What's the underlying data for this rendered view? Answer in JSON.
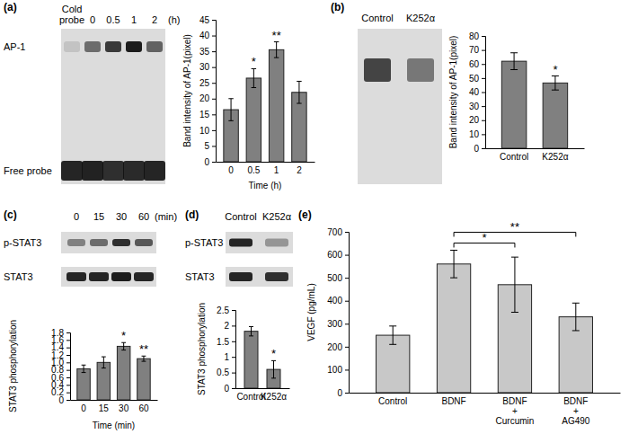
{
  "panel_labels": [
    "(a)",
    "(b)",
    "(c)",
    "(d)",
    "(e)"
  ],
  "images": [
    {
      "columns": [
        "Cold\nprobe",
        "0",
        "0.5",
        "1",
        "2"
      ],
      "unit": "(h)",
      "rows": [
        "AP-1",
        "Free probe"
      ]
    },
    {
      "columns": [
        "Control",
        "K252α"
      ]
    },
    {
      "columns": [
        "0",
        "15",
        "30",
        "60"
      ],
      "unit": "(min)",
      "rows": [
        "p-STAT3",
        "STAT3"
      ]
    },
    {
      "columns": [
        "Control",
        "K252α"
      ],
      "rows": [
        "p-STAT3",
        "STAT3"
      ]
    }
  ],
  "chart_data": [
    {
      "type": "bar",
      "categories": [
        "0",
        "0.5",
        "1",
        "2"
      ],
      "values": [
        16.5,
        26.5,
        35.5,
        22
      ],
      "errors": [
        3.5,
        3,
        2.5,
        3.5
      ],
      "color": "#808080",
      "ylim": [
        0,
        45
      ],
      "yticks": [
        0,
        5,
        10,
        15,
        20,
        25,
        30,
        35,
        40,
        45
      ],
      "y_label": "Band intensity of AP-1(pixel)",
      "x_label": "Time (h)",
      "annotations": [
        {
          "text": "*",
          "at": "0.5"
        },
        {
          "text": "**",
          "at": "1"
        }
      ]
    },
    {
      "type": "bar",
      "categories": [
        "Control",
        "K252α"
      ],
      "values": [
        62,
        46.5
      ],
      "errors": [
        6,
        5
      ],
      "color": "#808080",
      "ylim": [
        0,
        80
      ],
      "yticks": [
        0,
        10,
        20,
        30,
        40,
        50,
        60,
        70,
        80
      ],
      "y_label": "Band intensity of AP-1(pixel)",
      "annotations": [
        {
          "text": "*",
          "at": "K252α"
        }
      ]
    },
    {
      "type": "bar",
      "categories": [
        "0",
        "15",
        "30",
        "60"
      ],
      "values": [
        0.83,
        1.0,
        1.43,
        1.1
      ],
      "errors": [
        0.1,
        0.15,
        0.1,
        0.07
      ],
      "color": "#808080",
      "ylim": [
        0,
        1.8
      ],
      "yticks": [
        0,
        0.2,
        0.4,
        0.6,
        0.8,
        {
          "value": 1,
          "label": "1.0"
        },
        1.2,
        1.4,
        1.6,
        1.8
      ],
      "y_label": "STAT3 phosphorylation",
      "x_label": "Time (min)",
      "annotations": [
        {
          "text": "*",
          "at": "30"
        },
        {
          "text": "**",
          "at": "60"
        }
      ]
    },
    {
      "type": "bar",
      "categories": [
        "Control",
        "K252α"
      ],
      "values": [
        1.82,
        0.6
      ],
      "errors": [
        0.15,
        0.28
      ],
      "color": "#808080",
      "ylim": [
        0,
        2.5
      ],
      "yticks": [
        0,
        0.5,
        1,
        1.5,
        2,
        2.5
      ],
      "y_label": "STAT3 phosphorylation",
      "annotations": [
        {
          "text": "*",
          "at": "K252α"
        }
      ]
    },
    {
      "type": "bar",
      "categories": [
        "Control",
        "BDNF",
        "BDNF\n+\nCurcumin",
        "BDNF\n+\nAG490"
      ],
      "values": [
        250,
        560,
        470,
        330
      ],
      "errors": [
        40,
        60,
        120,
        60
      ],
      "color": "#c8c8c8",
      "ylim": [
        0,
        700
      ],
      "yticks": [
        0,
        100,
        200,
        300,
        400,
        500,
        600,
        700
      ],
      "y_label": "VEGF (pg/mL)",
      "annotations": [
        {
          "text": "*",
          "from": "BDNF",
          "to": "BDNF\n+\nCurcumin"
        },
        {
          "text": "**",
          "from": "BDNF",
          "to": "BDNF\n+\nAG490"
        }
      ]
    }
  ]
}
